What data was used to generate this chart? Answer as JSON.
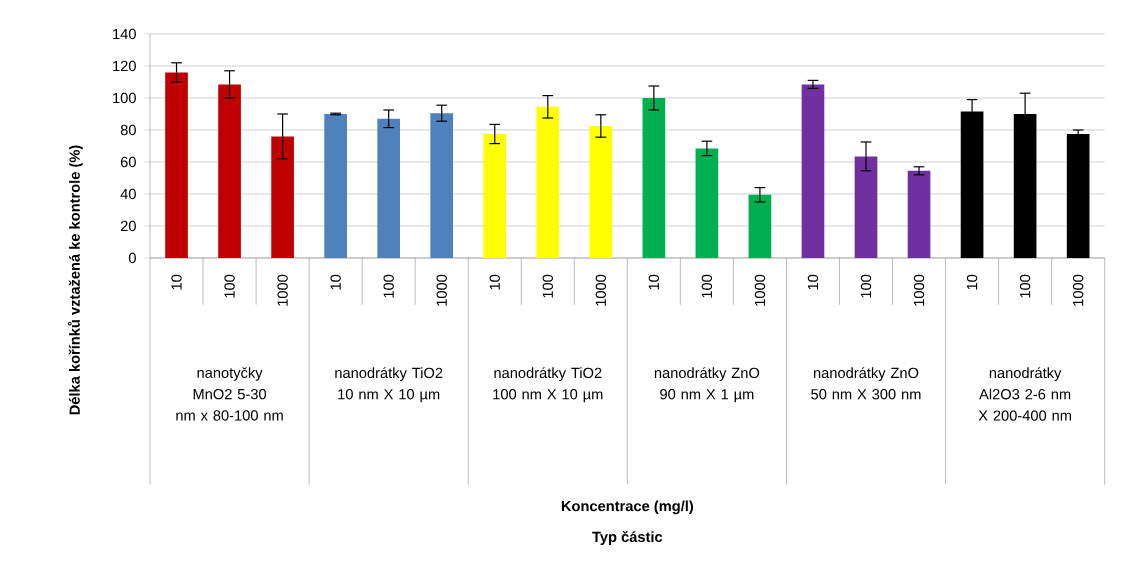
{
  "chart_data": {
    "type": "bar",
    "ylabel": "Délka kořínků vztažená ke kontrole (%)",
    "categories": [
      "10",
      "100",
      "1000",
      "10",
      "100",
      "1000",
      "10",
      "100",
      "1000",
      "10",
      "100",
      "1000",
      "10",
      "100",
      "1000",
      "10",
      "100",
      "1000"
    ],
    "values": [
      116,
      108.5,
      76,
      90,
      87,
      90.5,
      77.5,
      94.5,
      82.5,
      100,
      68.5,
      39.5,
      108.5,
      63.5,
      54.5,
      91.5,
      90,
      77.5
    ],
    "errors": [
      6,
      8.5,
      14,
      0.5,
      5.5,
      5,
      6,
      7,
      7,
      7.5,
      4.5,
      4.5,
      2.5,
      9,
      2.5,
      7.5,
      13,
      2.5
    ],
    "colors": [
      "#c00000",
      "#c00000",
      "#c00000",
      "#4f81bd",
      "#4f81bd",
      "#4f81bd",
      "#ffff00",
      "#ffff00",
      "#ffff00",
      "#00b050",
      "#00b050",
      "#00b050",
      "#7030a0",
      "#7030a0",
      "#7030a0",
      "#000000",
      "#000000",
      "#000000"
    ],
    "ylim": [
      0,
      140
    ],
    "yticks": [
      0,
      20,
      40,
      60,
      80,
      100,
      120,
      140
    ],
    "grid": "y",
    "annotations": [
      "nanotyčky MnO2 5-30 nm x 80-100 nm",
      "nanodrátky TiO2 10 nm X 10 µm",
      "nanodrátky TiO2 100 nm X 10 µm",
      "nanodrátky ZnO 90 nm X 1 µm",
      "nanodrátky ZnO 50 nm X 300 nm",
      "nanodrátky Al2O3 2-6 nm X 200-400 nm",
      "Koncentrace (mg/l)",
      "Typ částic"
    ]
  }
}
